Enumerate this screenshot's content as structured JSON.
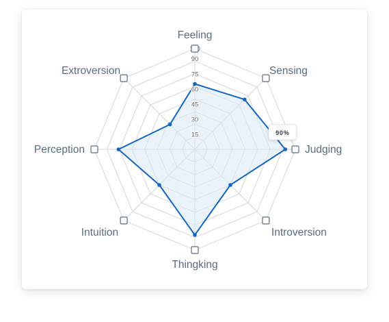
{
  "chart_data": {
    "type": "radar",
    "axes": [
      "Feeling",
      "Sensing",
      "Judging",
      "Introversion",
      "Thingking",
      "Intuition",
      "Perception",
      "Extroversion"
    ],
    "ticks": [
      "15",
      "30",
      "45",
      "60",
      "75",
      "90",
      "100"
    ],
    "range": [
      0,
      100
    ],
    "grid": true,
    "series": [
      {
        "values": [
          65,
          70,
          90,
          50,
          85,
          50,
          76,
          35
        ]
      }
    ],
    "tooltip": {
      "text": "90%",
      "axis": "Judging",
      "value": 90
    },
    "colors": {
      "line": "#1565c0",
      "fill": "#dbe8f5",
      "grid": "#d5d5d5",
      "handle_border": "#5b6b82"
    }
  }
}
